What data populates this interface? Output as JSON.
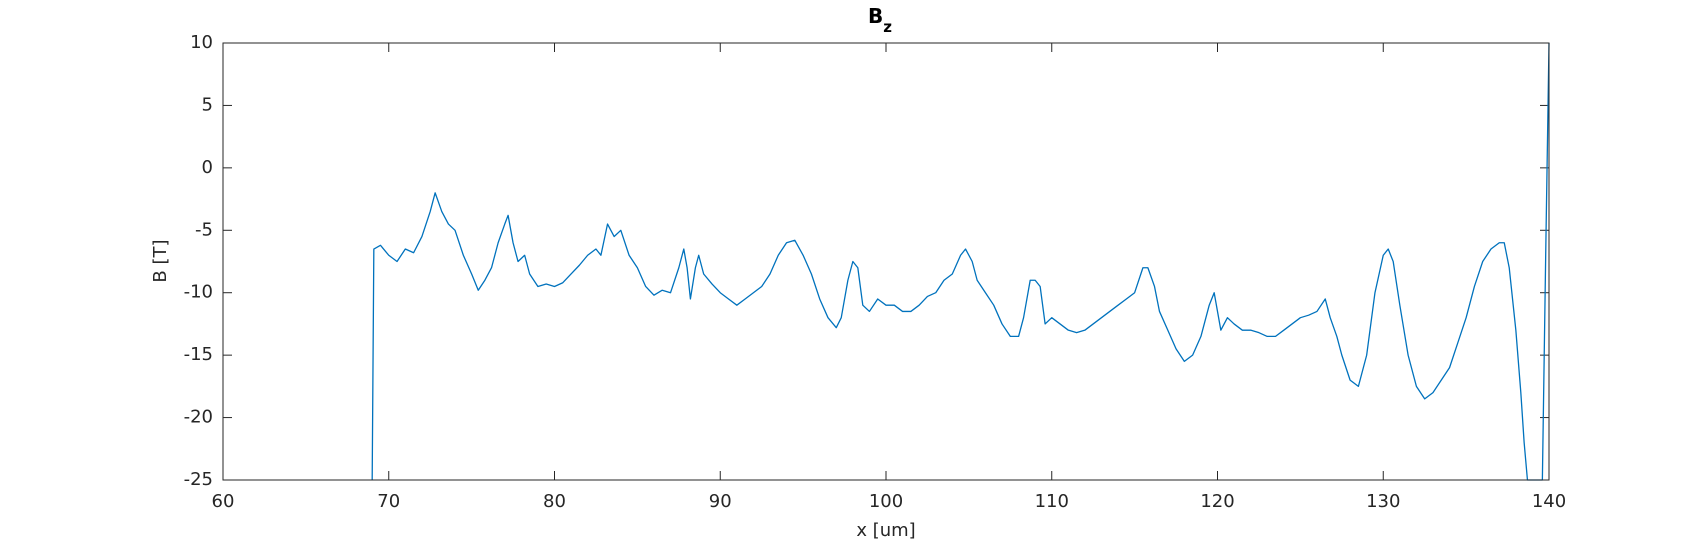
{
  "chart_data": {
    "type": "line",
    "title": {
      "text": "B",
      "subscript": "z"
    },
    "x_label": "x [um]",
    "y_label": "B [T]",
    "xlim": [
      60,
      140
    ],
    "xticks": [
      60,
      70,
      80,
      90,
      100,
      110,
      120,
      130,
      140
    ],
    "ylim": [
      -25,
      10
    ],
    "yticks": [
      -25,
      -20,
      -15,
      -10,
      -5,
      0,
      5,
      10
    ],
    "grid": false,
    "series": [
      {
        "name": "Bz",
        "color": "#0072BD",
        "x": [
          69.0,
          69.1,
          69.5,
          70,
          70.5,
          71,
          71.5,
          72,
          72.5,
          72.8,
          73.2,
          73.6,
          74,
          74.5,
          75,
          75.4,
          75.8,
          76.2,
          76.6,
          77,
          77.2,
          77.5,
          77.8,
          78.2,
          78.5,
          79,
          79.5,
          80,
          80.5,
          81,
          81.5,
          82,
          82.5,
          82.8,
          83.2,
          83.6,
          84,
          84.5,
          85,
          85.5,
          86,
          86.5,
          87,
          87.5,
          87.8,
          88,
          88.2,
          88.5,
          88.7,
          89,
          89.5,
          90,
          90.5,
          91,
          91.5,
          92,
          92.5,
          93,
          93.5,
          94,
          94.5,
          95,
          95.5,
          96,
          96.5,
          97,
          97.3,
          97.7,
          98,
          98.3,
          98.6,
          99,
          99.5,
          100,
          100.5,
          101,
          101.5,
          102,
          102.5,
          103,
          103.5,
          104,
          104.5,
          104.8,
          105.2,
          105.5,
          106,
          106.5,
          107,
          107.5,
          108,
          108.3,
          108.7,
          109,
          109.3,
          109.6,
          110,
          110.5,
          111,
          111.5,
          112,
          112.5,
          113,
          113.5,
          114,
          114.5,
          115,
          115.5,
          115.8,
          116.2,
          116.5,
          117,
          117.5,
          118,
          118.5,
          119,
          119.5,
          119.8,
          120.2,
          120.6,
          121,
          121.5,
          122,
          122.5,
          123,
          123.5,
          124,
          124.5,
          125,
          125.5,
          126,
          126.5,
          126.8,
          127.2,
          127.5,
          128,
          128.5,
          129,
          129.5,
          130,
          130.3,
          130.6,
          131,
          131.5,
          132,
          132.5,
          133,
          133.5,
          134,
          134.5,
          135,
          135.5,
          136,
          136.5,
          137,
          137.3,
          137.6,
          138,
          138.3,
          138.5,
          138.7,
          139.6,
          139.8,
          140
        ],
        "values": [
          -25,
          -6.5,
          -6.2,
          -7,
          -7.5,
          -6.5,
          -6.8,
          -5.5,
          -3.5,
          -2,
          -3.5,
          -4.5,
          -5,
          -7,
          -8.5,
          -9.8,
          -9,
          -8,
          -6,
          -4.5,
          -3.8,
          -6,
          -7.5,
          -7,
          -8.5,
          -9.5,
          -9.3,
          -9.5,
          -9.2,
          -8.5,
          -7.8,
          -7,
          -6.5,
          -7,
          -4.5,
          -5.5,
          -5,
          -7,
          -8,
          -9.5,
          -10.2,
          -9.8,
          -10,
          -8,
          -6.5,
          -8,
          -10.5,
          -8,
          -7,
          -8.5,
          -9.3,
          -10,
          -10.5,
          -11,
          -10.5,
          -10,
          -9.5,
          -8.5,
          -7,
          -6,
          -5.8,
          -7,
          -8.5,
          -10.5,
          -12,
          -12.8,
          -12,
          -9,
          -7.5,
          -8,
          -11,
          -11.5,
          -10.5,
          -11,
          -11,
          -11.5,
          -11.5,
          -11,
          -10.3,
          -10,
          -9,
          -8.5,
          -7,
          -6.5,
          -7.5,
          -9,
          -10,
          -11,
          -12.5,
          -13.5,
          -13.5,
          -12,
          -9,
          -9,
          -9.5,
          -12.5,
          -12,
          -12.5,
          -13,
          -13.2,
          -13,
          -12.5,
          -12,
          -11.5,
          -11,
          -10.5,
          -10,
          -8,
          -8,
          -9.5,
          -11.5,
          -13,
          -14.5,
          -15.5,
          -15,
          -13.5,
          -11,
          -10,
          -13,
          -12,
          -12.5,
          -13,
          -13,
          -13.2,
          -13.5,
          -13.5,
          -13,
          -12.5,
          -12,
          -11.8,
          -11.5,
          -10.5,
          -12,
          -13.5,
          -15,
          -17,
          -17.5,
          -15,
          -10,
          -7,
          -6.5,
          -7.5,
          -11,
          -15,
          -17.5,
          -18.5,
          -18,
          -17,
          -16,
          -14,
          -12,
          -9.5,
          -7.5,
          -6.5,
          -6,
          -6,
          -8,
          -13,
          -18,
          -22,
          -25,
          -25,
          -7,
          10
        ]
      }
    ]
  }
}
